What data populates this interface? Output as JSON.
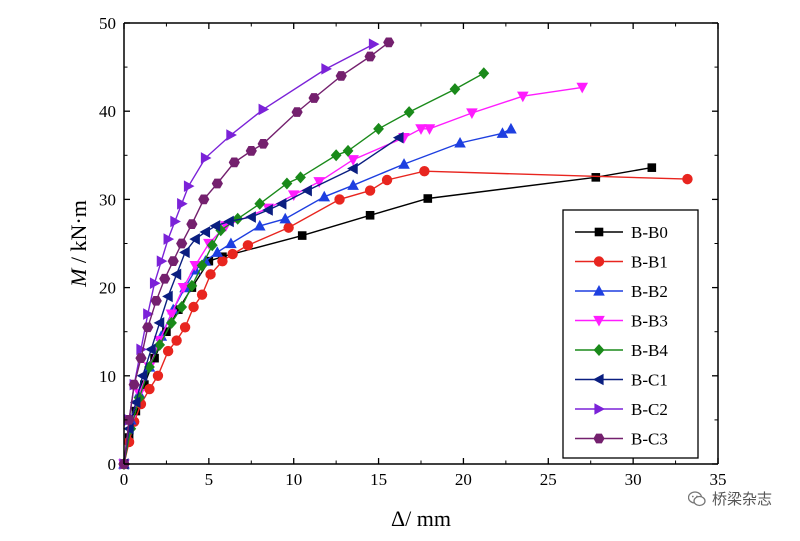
{
  "chart_data": {
    "type": "line",
    "title": "",
    "xlabel": "Δ/ mm",
    "ylabel_italic": "M",
    "ylabel_rest": " / kN·m",
    "xlim": [
      0,
      35
    ],
    "ylim": [
      0,
      50
    ],
    "xticks": [
      0,
      5,
      10,
      15,
      20,
      25,
      30,
      35
    ],
    "yticks": [
      0,
      10,
      20,
      30,
      40,
      50
    ],
    "grid": false,
    "legend_position": "right",
    "series": [
      {
        "name": "B-B0",
        "color": "#000000",
        "marker": "square",
        "x": [
          0,
          0.3,
          0.7,
          1.2,
          1.8,
          2.5,
          3.2,
          4.0,
          5.0,
          5.8,
          10.5,
          14.5,
          17.9,
          27.8,
          31.1
        ],
        "y": [
          0,
          3,
          6,
          9,
          12,
          15,
          17.5,
          20,
          23,
          23.5,
          25.9,
          28.2,
          30.1,
          32.5,
          33.6
        ]
      },
      {
        "name": "B-B1",
        "color": "#e8251f",
        "marker": "circle",
        "x": [
          0,
          0.3,
          0.6,
          1.0,
          1.5,
          2.0,
          2.6,
          3.1,
          3.6,
          4.1,
          4.6,
          5.1,
          5.8,
          6.4,
          7.3,
          9.7,
          12.7,
          14.5,
          15.5,
          17.7,
          33.2
        ],
        "y": [
          0,
          2.5,
          4.8,
          6.8,
          8.5,
          10,
          12.8,
          14,
          15.5,
          17.8,
          19.2,
          21.5,
          23,
          23.8,
          24.8,
          26.8,
          30,
          31,
          32.2,
          33.2,
          32.3
        ]
      },
      {
        "name": "B-B2",
        "color": "#1e3fe0",
        "marker": "triangle-up",
        "x": [
          0,
          0.4,
          0.9,
          1.5,
          2.2,
          2.9,
          3.6,
          4.2,
          4.8,
          5.5,
          6.3,
          8.0,
          9.5,
          11.8,
          13.5,
          16.5,
          19.8,
          22.3,
          22.8
        ],
        "y": [
          0,
          5,
          8,
          11,
          14.5,
          17.5,
          20,
          22,
          23,
          24,
          25,
          27,
          27.8,
          30.3,
          31.6,
          34,
          36.4,
          37.5,
          38
        ]
      },
      {
        "name": "B-B3",
        "color": "#ff1cff",
        "marker": "triangle-down",
        "x": [
          0,
          0.4,
          0.9,
          1.5,
          2.1,
          2.8,
          3.5,
          4.2,
          5.0,
          6.0,
          8.5,
          10.0,
          11.5,
          13.5,
          16.5,
          17.5,
          18.0,
          20.5,
          23.5,
          27.0
        ],
        "y": [
          0,
          5,
          8,
          11,
          14,
          17,
          20,
          22.5,
          25,
          27,
          29,
          30.5,
          32,
          34.5,
          37,
          38,
          38,
          39.8,
          41.7,
          42.7
        ]
      },
      {
        "name": "B-B4",
        "color": "#1a8a1a",
        "marker": "diamond",
        "x": [
          0,
          0.4,
          0.9,
          1.5,
          2.1,
          2.8,
          3.4,
          4.0,
          4.6,
          5.2,
          5.7,
          6.7,
          8.0,
          9.6,
          10.4,
          12.5,
          13.2,
          15.0,
          16.8,
          19.5,
          21.2
        ],
        "y": [
          0,
          4,
          7.5,
          11,
          13.5,
          16,
          17.8,
          20.2,
          22.5,
          24.8,
          26.5,
          27.8,
          29.5,
          31.8,
          32.5,
          35,
          35.5,
          38,
          39.9,
          42.5,
          44.3
        ]
      },
      {
        "name": "B-C1",
        "color": "#0a1e80",
        "marker": "triangle-left",
        "x": [
          0,
          0.3,
          0.7,
          1.1,
          1.6,
          2.1,
          2.6,
          3.1,
          3.6,
          4.2,
          4.8,
          5.4,
          6.2,
          7.5,
          8.5,
          9.3,
          10.8,
          13.5,
          16.2
        ],
        "y": [
          0,
          4,
          7,
          10,
          13,
          16,
          19,
          21.5,
          24,
          25.5,
          26.3,
          27,
          27.5,
          28,
          28.8,
          29.5,
          31,
          33.5,
          37
        ]
      },
      {
        "name": "B-C2",
        "color": "#7b22d8",
        "marker": "triangle-right",
        "x": [
          0,
          0.3,
          0.6,
          1.0,
          1.4,
          1.8,
          2.2,
          2.6,
          3.0,
          3.4,
          3.8,
          4.8,
          6.3,
          8.2,
          11.9,
          14.7
        ],
        "y": [
          0,
          5,
          9,
          13,
          17,
          20.5,
          23,
          25.5,
          27.5,
          29.5,
          31.5,
          34.7,
          37.3,
          40.2,
          44.8,
          47.6
        ]
      },
      {
        "name": "B-C3",
        "color": "#74206e",
        "marker": "hexagon",
        "x": [
          0,
          0.3,
          0.6,
          1.0,
          1.4,
          1.9,
          2.4,
          2.9,
          3.4,
          4.0,
          4.7,
          5.5,
          6.5,
          7.5,
          8.2,
          10.2,
          11.2,
          12.8,
          14.5,
          15.6
        ],
        "y": [
          0,
          5,
          9,
          12,
          15.5,
          18.5,
          21,
          23,
          25,
          27.2,
          30,
          31.8,
          34.2,
          35.5,
          36.3,
          39.9,
          41.5,
          44,
          46.2,
          47.8
        ]
      }
    ]
  },
  "watermark": {
    "text": "桥梁杂志",
    "icon": "wechat-icon"
  }
}
